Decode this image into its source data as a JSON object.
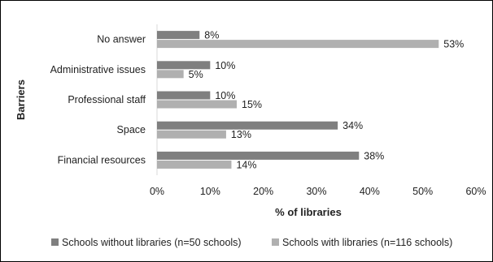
{
  "chart_data": {
    "type": "bar",
    "orientation": "horizontal",
    "categories": [
      "No answer",
      "Administrative issues",
      "Professional staff",
      "Space",
      "Financial resources"
    ],
    "series": [
      {
        "name": "Schools without libraries (n=50 schools)",
        "values": [
          8,
          10,
          10,
          34,
          38
        ],
        "labels": [
          "8%",
          "10%",
          "10%",
          "34%",
          "38%"
        ],
        "color": "#7f7f7f"
      },
      {
        "name": "Schools with libraries (n=116 schools)",
        "values": [
          53,
          5,
          15,
          13,
          14
        ],
        "labels": [
          "53%",
          "5%",
          "15%",
          "13%",
          "14%"
        ],
        "color": "#b0b0b0"
      }
    ],
    "xlabel": "% of libraries",
    "ylabel": "Barriers",
    "xlim": [
      0,
      60
    ],
    "xticks": [
      "0%",
      "10%",
      "20%",
      "30%",
      "40%",
      "50%",
      "60%"
    ],
    "grid": false,
    "legend_position": "bottom"
  }
}
